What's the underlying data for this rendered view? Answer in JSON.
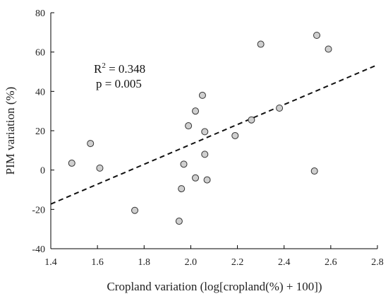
{
  "chart_data": {
    "type": "scatter",
    "title": "",
    "xlabel": "Cropland variation (log[cropland(%) + 100])",
    "ylabel": "PIM variation (%)",
    "xlim": [
      1.4,
      2.8
    ],
    "ylim": [
      -40,
      80
    ],
    "x_ticks": [
      "1.4",
      "1.6",
      "1.8",
      "2.0",
      "2.2",
      "2.4",
      "2.6",
      "2.8"
    ],
    "y_ticks": [
      "-40",
      "-20",
      "0",
      "20",
      "40",
      "60",
      "80"
    ],
    "grid": false,
    "colors": {
      "marker_fill": "#cfcfcf",
      "marker_stroke": "#333333",
      "trend": "#111111"
    },
    "series": [
      {
        "x": [
          1.49,
          1.57,
          1.61,
          1.76,
          1.95,
          1.96,
          1.97,
          1.99,
          2.02,
          2.02,
          2.05,
          2.06,
          2.06,
          2.07,
          2.19,
          2.26,
          2.3,
          2.38,
          2.53,
          2.54,
          2.59
        ],
        "y": [
          3.5,
          13.5,
          1.0,
          -20.5,
          -26.0,
          -9.5,
          3.0,
          22.5,
          30.0,
          -4.0,
          38.0,
          8.0,
          19.5,
          -5.0,
          17.5,
          25.5,
          64.0,
          31.5,
          -0.5,
          68.5,
          61.5
        ]
      }
    ],
    "trendline": {
      "x": [
        1.4,
        2.8
      ],
      "y": [
        -17.3,
        53.5
      ]
    },
    "annotation": {
      "r2_base": "R",
      "r2_sup": "2",
      "r2_value": " = 0.348",
      "p_text": "p = 0.005"
    }
  }
}
